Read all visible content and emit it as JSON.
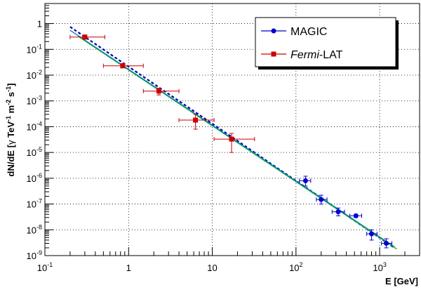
{
  "chart_data": {
    "type": "scatter",
    "title": "",
    "xlabel": "E [GeV]",
    "ylabel_parts": {
      "pre": "dN/dE [",
      "gamma": "γ",
      "tev": " TeV",
      "tev_exp": "-1",
      "m": " m",
      "m_exp": "-2",
      "s": " s",
      "s_exp": "-1",
      "post": "]"
    },
    "x_scale": "log",
    "y_scale": "log",
    "xlim": [
      0.1,
      3000
    ],
    "ylim": [
      1e-09,
      6
    ],
    "grid": true,
    "legend_position": "top-right",
    "x_ticks": [
      {
        "value": 0.1,
        "base": "10",
        "exp": "-1"
      },
      {
        "value": 1,
        "base": "1",
        "exp": ""
      },
      {
        "value": 10,
        "base": "10",
        "exp": ""
      },
      {
        "value": 100,
        "base": "10",
        "exp": "2"
      },
      {
        "value": 1000,
        "base": "10",
        "exp": "3"
      }
    ],
    "y_ticks": [
      {
        "value": 1e-09,
        "base": "10",
        "exp": "-9"
      },
      {
        "value": 1e-08,
        "base": "10",
        "exp": "-8"
      },
      {
        "value": 1e-07,
        "base": "10",
        "exp": "-7"
      },
      {
        "value": 1e-06,
        "base": "10",
        "exp": "-6"
      },
      {
        "value": 1e-05,
        "base": "10",
        "exp": "-5"
      },
      {
        "value": 0.0001,
        "base": "10",
        "exp": "-4"
      },
      {
        "value": 0.001,
        "base": "10",
        "exp": "-3"
      },
      {
        "value": 0.01,
        "base": "10",
        "exp": "-2"
      },
      {
        "value": 0.1,
        "base": "10",
        "exp": "-1"
      },
      {
        "value": 1,
        "base": "1",
        "exp": ""
      }
    ],
    "series": [
      {
        "name": "MAGIC",
        "name_italic": "",
        "name_rest": "MAGIC",
        "color": "#0000cc",
        "marker": "circle",
        "points": [
          {
            "x": 130,
            "y": 8e-07,
            "xlo": 110,
            "xhi": 150,
            "ylo": 5e-07,
            "yhi": 1.2e-06
          },
          {
            "x": 200,
            "y": 1.5e-07,
            "xlo": 175,
            "xhi": 235,
            "ylo": 1e-07,
            "yhi": 2.2e-07
          },
          {
            "x": 320,
            "y": 5e-08,
            "xlo": 270,
            "xhi": 380,
            "ylo": 3.5e-08,
            "yhi": 7e-08
          },
          {
            "x": 520,
            "y": 3.5e-08,
            "xlo": 440,
            "xhi": 610,
            "ylo": 3e-08,
            "yhi": 4e-08
          },
          {
            "x": 800,
            "y": 7e-09,
            "xlo": 700,
            "xhi": 930,
            "ylo": 4e-09,
            "yhi": 1e-08
          },
          {
            "x": 1200,
            "y": 3e-09,
            "xlo": 1050,
            "xhi": 1400,
            "ylo": 2e-09,
            "yhi": 4.5e-09
          }
        ]
      },
      {
        "name": "Fermi-LAT",
        "name_italic": "Fermi",
        "name_rest": "-LAT",
        "color": "#cc0000",
        "marker": "square",
        "points": [
          {
            "x": 0.3,
            "y": 0.3,
            "xlo": 0.2,
            "xhi": 0.52,
            "ylo": 0.25,
            "yhi": 0.36
          },
          {
            "x": 0.85,
            "y": 0.023,
            "xlo": 0.5,
            "xhi": 1.5,
            "ylo": 0.019,
            "yhi": 0.028
          },
          {
            "x": 2.3,
            "y": 0.0024,
            "xlo": 1.5,
            "xhi": 4.0,
            "ylo": 0.0017,
            "yhi": 0.0031
          },
          {
            "x": 6.3,
            "y": 0.00018,
            "xlo": 4.0,
            "xhi": 10.5,
            "ylo": 8e-05,
            "yhi": 0.0003
          },
          {
            "x": 17,
            "y": 3.3e-05,
            "xlo": 10.5,
            "xhi": 32,
            "ylo": 1e-05,
            "yhi": 5.5e-05
          }
        ]
      }
    ],
    "fit_lines": [
      {
        "color": "#0000aa",
        "style": "dashed",
        "x": [
          0.2,
          1500
        ],
        "y": [
          0.75,
          2e-09
        ]
      },
      {
        "color": "#22aa22",
        "style": "solid",
        "x": [
          0.25,
          1600
        ],
        "y": [
          0.32,
          1.8e-09
        ]
      },
      {
        "color": "#0088aa",
        "style": "solid",
        "x": [
          0.2,
          1500
        ],
        "y": [
          0.55,
          2.2e-09
        ]
      }
    ]
  }
}
